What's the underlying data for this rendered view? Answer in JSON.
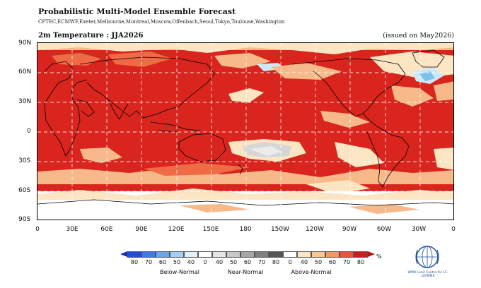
{
  "header": {
    "title": "Probabilistic Multi-Model Ensemble Forecast",
    "centres": "CPTEC,ECMWF,Exeter,Melbourne,Montreal,Moscow,Offenbach,Seoul,Tokyo,Toulouse,Washington",
    "subtitle": "2m Temperature : JJA2026",
    "issued": "(issued on May2026)"
  },
  "map": {
    "lat_labels": [
      "90N",
      "60N",
      "30N",
      "0",
      "30S",
      "60S",
      "90S"
    ],
    "lon_labels": [
      "0",
      "30E",
      "60E",
      "90E",
      "120E",
      "150E",
      "180",
      "150W",
      "120W",
      "90W",
      "60W",
      "30W",
      "0"
    ],
    "dominant_category": "Above-Normal",
    "colors": {
      "above_high": "#d9251d",
      "above_mid": "#ef6a45",
      "above_low": "#f7b98a",
      "above_min": "#fce5c2",
      "near": "#d6d6d6",
      "below_low": "#cfe8f6",
      "below_mid": "#7cc0ec",
      "coast": "#000000",
      "grid": "#ffffff"
    }
  },
  "legend": {
    "ticks": [
      "80",
      "70",
      "60",
      "50",
      "40",
      "0",
      "40",
      "50",
      "60",
      "70",
      "80",
      "0",
      "40",
      "50",
      "60",
      "70",
      "80"
    ],
    "unit": "%",
    "categories": [
      "Below-Normal",
      "Near-Normal",
      "Above-Normal"
    ],
    "colors": [
      "#1f4fd0",
      "#3d7be0",
      "#6aa7ea",
      "#a6d0f3",
      "#e2f2fb",
      "#ffffff",
      "#e6e6e6",
      "#c8c8c8",
      "#a6a6a6",
      "#808080",
      "#555555",
      "#ffffff",
      "#fde7c4",
      "#f8c690",
      "#f19960",
      "#e4583a",
      "#c4231a"
    ]
  },
  "logo": {
    "text": "WMO Lead Centre for LC-LRFMME"
  }
}
